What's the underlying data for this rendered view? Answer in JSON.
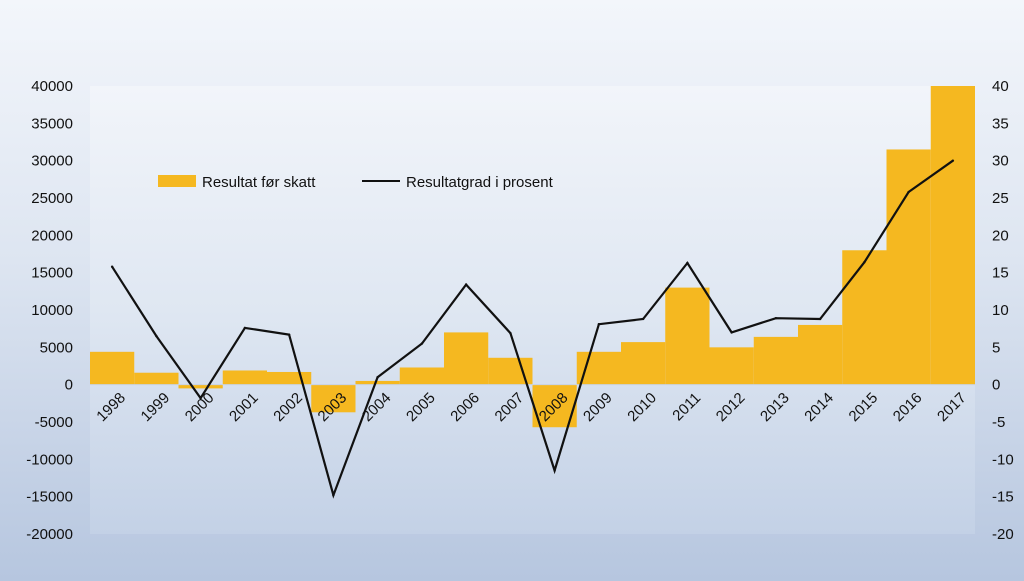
{
  "chart_data": {
    "type": "bar+line",
    "categories": [
      "1998",
      "1999",
      "2000",
      "2001",
      "2002",
      "2003",
      "2004",
      "2005",
      "2006",
      "2007",
      "2008",
      "2009",
      "2010",
      "2011",
      "2012",
      "2013",
      "2014",
      "2015",
      "2016",
      "2017"
    ],
    "series": [
      {
        "name": "Resultat før skatt",
        "type": "bar",
        "axis": "left",
        "color": "#f5b820",
        "values": [
          4400,
          1600,
          -500,
          1900,
          1700,
          -3700,
          500,
          2300,
          7000,
          3600,
          -5700,
          4400,
          5700,
          13000,
          5000,
          6400,
          8000,
          18000,
          31500,
          40000
        ]
      },
      {
        "name": "Resultatgrad i prosent",
        "type": "line",
        "axis": "right",
        "color": "#111111",
        "values": [
          15.8,
          6.5,
          -1.8,
          7.6,
          6.7,
          -14.8,
          1,
          5.5,
          13.4,
          6.9,
          -11.5,
          8.1,
          8.8,
          16.3,
          7,
          8.9,
          8.8,
          16.4,
          25.8,
          30
        ]
      }
    ],
    "y_left": {
      "min": -20000,
      "max": 40000,
      "ticks": [
        "-20000",
        "-15000",
        "-10000",
        "-5000",
        "0",
        "5000",
        "10000",
        "15000",
        "20000",
        "25000",
        "30000",
        "35000",
        "40000"
      ]
    },
    "y_right": {
      "min": -20,
      "max": 40,
      "ticks": [
        "-20",
        "-15",
        "-10",
        "-5",
        "0",
        "5",
        "10",
        "15",
        "20",
        "25",
        "30",
        "35",
        "40"
      ]
    },
    "title": "",
    "xlabel": "",
    "ylabel": "",
    "legend_position": "top-left",
    "grid": false
  }
}
